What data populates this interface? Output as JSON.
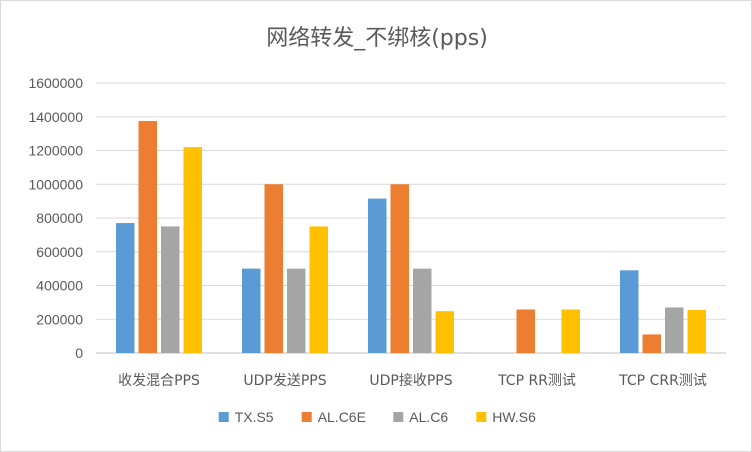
{
  "chart_data": {
    "type": "bar",
    "title": "网络转发_不绑核(pps)",
    "categories": [
      "收发混合PPS",
      "UDP发送PPS",
      "UDP接收PPS",
      "TCP RR测试",
      "TCP CRR测试"
    ],
    "series": [
      {
        "name": "TX.S5",
        "color": "#5b9bd5",
        "values": [
          770000,
          500000,
          915000,
          null,
          490000
        ]
      },
      {
        "name": "AL.C6E",
        "color": "#ed7d31",
        "values": [
          1375000,
          1000000,
          1000000,
          258000,
          110000
        ]
      },
      {
        "name": "AL.C6",
        "color": "#a5a5a5",
        "values": [
          750000,
          500000,
          500000,
          null,
          270000
        ]
      },
      {
        "name": "HW.S6",
        "color": "#ffc000",
        "values": [
          1220000,
          750000,
          248000,
          258000,
          255000
        ]
      }
    ],
    "ylim": [
      0,
      1600000
    ],
    "yticks": [
      "0",
      "200000",
      "400000",
      "600000",
      "800000",
      "1000000",
      "1200000",
      "1400000",
      "1600000"
    ],
    "ytick_step": 200000,
    "grid": true,
    "legend_position": "bottom",
    "gridline_color": "#d9d9d9",
    "axis_color": "#bfbfbf"
  }
}
